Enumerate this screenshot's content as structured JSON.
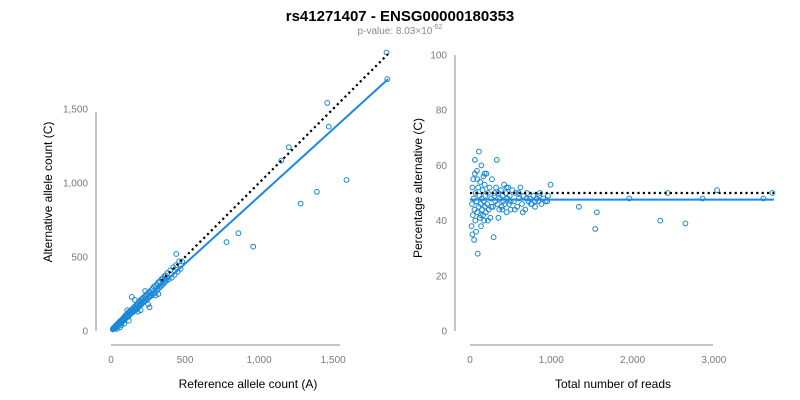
{
  "title": "rs41271407 - ENSG00000180353",
  "subtitle": {
    "prefix": "p-value: 8.03×10",
    "exponent": "-52"
  },
  "colors": {
    "points": "#1a86cf",
    "fit_line": "#1e88e5",
    "reference_line": "#000000",
    "axis": "#8a8a8a"
  },
  "chart_data": [
    {
      "type": "scatter",
      "name": "allele-counts",
      "xlabel": "Reference allele count (A)",
      "ylabel": "Alternative allele count (C)",
      "xlim": [
        0,
        1870
      ],
      "ylim": [
        0,
        1870
      ],
      "xticks": [
        0,
        500,
        1000,
        1500
      ],
      "xtick_labels": [
        "0",
        "500",
        "1,000",
        "1,500"
      ],
      "yticks": [
        0,
        500,
        1000,
        1500
      ],
      "ytick_labels": [
        "0",
        "500",
        "1,000",
        "1,500"
      ],
      "fit_line": {
        "x": [
          0,
          1870
        ],
        "y": [
          0,
          1700
        ]
      },
      "reference_line": {
        "x": [
          340,
          1870
        ],
        "y": [
          340,
          1870
        ],
        "style": "dotted"
      },
      "points": [
        [
          12,
          10
        ],
        [
          15,
          18
        ],
        [
          20,
          14
        ],
        [
          22,
          25
        ],
        [
          25,
          20
        ],
        [
          28,
          30
        ],
        [
          30,
          22
        ],
        [
          32,
          35
        ],
        [
          35,
          28
        ],
        [
          38,
          40
        ],
        [
          40,
          32
        ],
        [
          42,
          45
        ],
        [
          45,
          38
        ],
        [
          48,
          52
        ],
        [
          50,
          42
        ],
        [
          52,
          55
        ],
        [
          55,
          48
        ],
        [
          58,
          62
        ],
        [
          60,
          50
        ],
        [
          62,
          65
        ],
        [
          65,
          55
        ],
        [
          68,
          70
        ],
        [
          70,
          58
        ],
        [
          72,
          75
        ],
        [
          75,
          62
        ],
        [
          78,
          80
        ],
        [
          80,
          68
        ],
        [
          82,
          85
        ],
        [
          85,
          72
        ],
        [
          88,
          92
        ],
        [
          90,
          75
        ],
        [
          95,
          100
        ],
        [
          98,
          85
        ],
        [
          100,
          108
        ],
        [
          105,
          90
        ],
        [
          108,
          112
        ],
        [
          110,
          95
        ],
        [
          115,
          120
        ],
        [
          118,
          100
        ],
        [
          120,
          128
        ],
        [
          125,
          110
        ],
        [
          128,
          132
        ],
        [
          130,
          115
        ],
        [
          135,
          140
        ],
        [
          138,
          120
        ],
        [
          140,
          145
        ],
        [
          145,
          125
        ],
        [
          148,
          152
        ],
        [
          150,
          130
        ],
        [
          155,
          160
        ],
        [
          158,
          138
        ],
        [
          160,
          165
        ],
        [
          165,
          140
        ],
        [
          168,
          172
        ],
        [
          170,
          150
        ],
        [
          175,
          180
        ],
        [
          178,
          155
        ],
        [
          180,
          185
        ],
        [
          185,
          162
        ],
        [
          188,
          195
        ],
        [
          190,
          168
        ],
        [
          195,
          200
        ],
        [
          198,
          175
        ],
        [
          200,
          210
        ],
        [
          205,
          180
        ],
        [
          208,
          215
        ],
        [
          210,
          190
        ],
        [
          215,
          220
        ],
        [
          220,
          195
        ],
        [
          222,
          230
        ],
        [
          225,
          200
        ],
        [
          230,
          235
        ],
        [
          235,
          205
        ],
        [
          238,
          245
        ],
        [
          240,
          215
        ],
        [
          245,
          250
        ],
        [
          250,
          220
        ],
        [
          255,
          260
        ],
        [
          258,
          230
        ],
        [
          260,
          265
        ],
        [
          265,
          235
        ],
        [
          270,
          275
        ],
        [
          275,
          240
        ],
        [
          280,
          285
        ],
        [
          285,
          250
        ],
        [
          290,
          300
        ],
        [
          295,
          260
        ],
        [
          300,
          305
        ],
        [
          305,
          270
        ],
        [
          310,
          315
        ],
        [
          315,
          280
        ],
        [
          320,
          330
        ],
        [
          325,
          290
        ],
        [
          330,
          335
        ],
        [
          335,
          300
        ],
        [
          340,
          350
        ],
        [
          345,
          310
        ],
        [
          350,
          355
        ],
        [
          355,
          320
        ],
        [
          360,
          370
        ],
        [
          365,
          330
        ],
        [
          370,
          375
        ],
        [
          375,
          340
        ],
        [
          380,
          390
        ],
        [
          390,
          350
        ],
        [
          400,
          410
        ],
        [
          410,
          360
        ],
        [
          420,
          430
        ],
        [
          430,
          380
        ],
        [
          440,
          445
        ],
        [
          450,
          400
        ],
        [
          460,
          470
        ],
        [
          470,
          420
        ],
        [
          440,
          520
        ],
        [
          480,
          470
        ],
        [
          70,
          40
        ],
        [
          140,
          230
        ],
        [
          260,
          160
        ],
        [
          180,
          130
        ],
        [
          300,
          240
        ],
        [
          200,
          140
        ],
        [
          120,
          70
        ],
        [
          40,
          15
        ],
        [
          60,
          25
        ],
        [
          230,
          270
        ],
        [
          320,
          250
        ],
        [
          90,
          50
        ],
        [
          110,
          140
        ],
        [
          160,
          210
        ],
        [
          250,
          180
        ],
        [
          780,
          600
        ],
        [
          860,
          660
        ],
        [
          960,
          570
        ],
        [
          1150,
          1150
        ],
        [
          1200,
          1240
        ],
        [
          1280,
          860
        ],
        [
          1390,
          940
        ],
        [
          1460,
          1540
        ],
        [
          1470,
          1380
        ],
        [
          1590,
          1020
        ],
        [
          1860,
          1880
        ],
        [
          1865,
          1700
        ]
      ]
    },
    {
      "type": "scatter",
      "name": "percentage-alternative",
      "xlabel": "Total number of reads",
      "ylabel": "Percentage alternative (C)",
      "xlim": [
        0,
        3740
      ],
      "ylim": [
        0,
        100
      ],
      "xticks": [
        0,
        1000,
        2000,
        3000
      ],
      "xtick_labels": [
        "0",
        "1,000",
        "2,000",
        "3,000"
      ],
      "yticks": [
        0,
        20,
        40,
        60,
        80,
        100
      ],
      "ytick_labels": [
        "0",
        "20",
        "40",
        "60",
        "80",
        "100"
      ],
      "fit_line": {
        "x": [
          0,
          3740
        ],
        "y": [
          47.6,
          47.6
        ]
      },
      "reference_line": {
        "x": [
          0,
          3740
        ],
        "y": [
          50,
          50
        ],
        "style": "dotted"
      },
      "points": [
        [
          20,
          38
        ],
        [
          25,
          46
        ],
        [
          30,
          52
        ],
        [
          35,
          42
        ],
        [
          40,
          55
        ],
        [
          45,
          48
        ],
        [
          50,
          33
        ],
        [
          55,
          44
        ],
        [
          60,
          57
        ],
        [
          65,
          40
        ],
        [
          70,
          50
        ],
        [
          75,
          36
        ],
        [
          80,
          47
        ],
        [
          85,
          58
        ],
        [
          90,
          43
        ],
        [
          95,
          28
        ],
        [
          100,
          52
        ],
        [
          105,
          45
        ],
        [
          110,
          65
        ],
        [
          115,
          49
        ],
        [
          120,
          41
        ],
        [
          125,
          54
        ],
        [
          130,
          46
        ],
        [
          135,
          38
        ],
        [
          140,
          60
        ],
        [
          145,
          48
        ],
        [
          150,
          44
        ],
        [
          155,
          51
        ],
        [
          160,
          42
        ],
        [
          165,
          56
        ],
        [
          170,
          47
        ],
        [
          175,
          40
        ],
        [
          180,
          53
        ],
        [
          185,
          45
        ],
        [
          190,
          49
        ],
        [
          195,
          43
        ],
        [
          200,
          57
        ],
        [
          210,
          46
        ],
        [
          220,
          50
        ],
        [
          230,
          44
        ],
        [
          240,
          52
        ],
        [
          250,
          41
        ],
        [
          260,
          48
        ],
        [
          270,
          55
        ],
        [
          280,
          45
        ],
        [
          290,
          34
        ],
        [
          300,
          49
        ],
        [
          310,
          47
        ],
        [
          320,
          52
        ],
        [
          330,
          62
        ],
        [
          340,
          46
        ],
        [
          350,
          50
        ],
        [
          360,
          44
        ],
        [
          370,
          48
        ],
        [
          380,
          51
        ],
        [
          390,
          45
        ],
        [
          400,
          49
        ],
        [
          410,
          47
        ],
        [
          420,
          53
        ],
        [
          430,
          46
        ],
        [
          440,
          50
        ],
        [
          450,
          43
        ],
        [
          460,
          48
        ],
        [
          470,
          52
        ],
        [
          480,
          46
        ],
        [
          490,
          49
        ],
        [
          500,
          44
        ],
        [
          520,
          51
        ],
        [
          540,
          47
        ],
        [
          560,
          50
        ],
        [
          580,
          45
        ],
        [
          600,
          48
        ],
        [
          620,
          52
        ],
        [
          640,
          46
        ],
        [
          660,
          49
        ],
        [
          680,
          44
        ],
        [
          700,
          50
        ],
        [
          720,
          47
        ],
        [
          740,
          48
        ],
        [
          760,
          46
        ],
        [
          780,
          49
        ],
        [
          800,
          45
        ],
        [
          820,
          48
        ],
        [
          840,
          47
        ],
        [
          860,
          50
        ],
        [
          880,
          46
        ],
        [
          900,
          48
        ],
        [
          930,
          47
        ],
        [
          960,
          49
        ],
        [
          990,
          53
        ],
        [
          30,
          35
        ],
        [
          60,
          62
        ],
        [
          90,
          55
        ],
        [
          130,
          42
        ],
        [
          180,
          57
        ],
        [
          220,
          40
        ],
        [
          260,
          45
        ],
        [
          300,
          50
        ],
        [
          350,
          41
        ],
        [
          400,
          44
        ],
        [
          450,
          52
        ],
        [
          500,
          47
        ],
        [
          550,
          44
        ],
        [
          600,
          50
        ],
        [
          650,
          43
        ],
        [
          700,
          48
        ],
        [
          750,
          46
        ],
        [
          800,
          47
        ],
        [
          850,
          49
        ],
        [
          950,
          47
        ],
        [
          1340,
          45
        ],
        [
          1540,
          37
        ],
        [
          1560,
          43
        ],
        [
          1960,
          48
        ],
        [
          2340,
          40
        ],
        [
          2430,
          50
        ],
        [
          2650,
          39
        ],
        [
          2860,
          48
        ],
        [
          3040,
          51
        ],
        [
          3610,
          48
        ],
        [
          3720,
          50
        ]
      ]
    }
  ]
}
